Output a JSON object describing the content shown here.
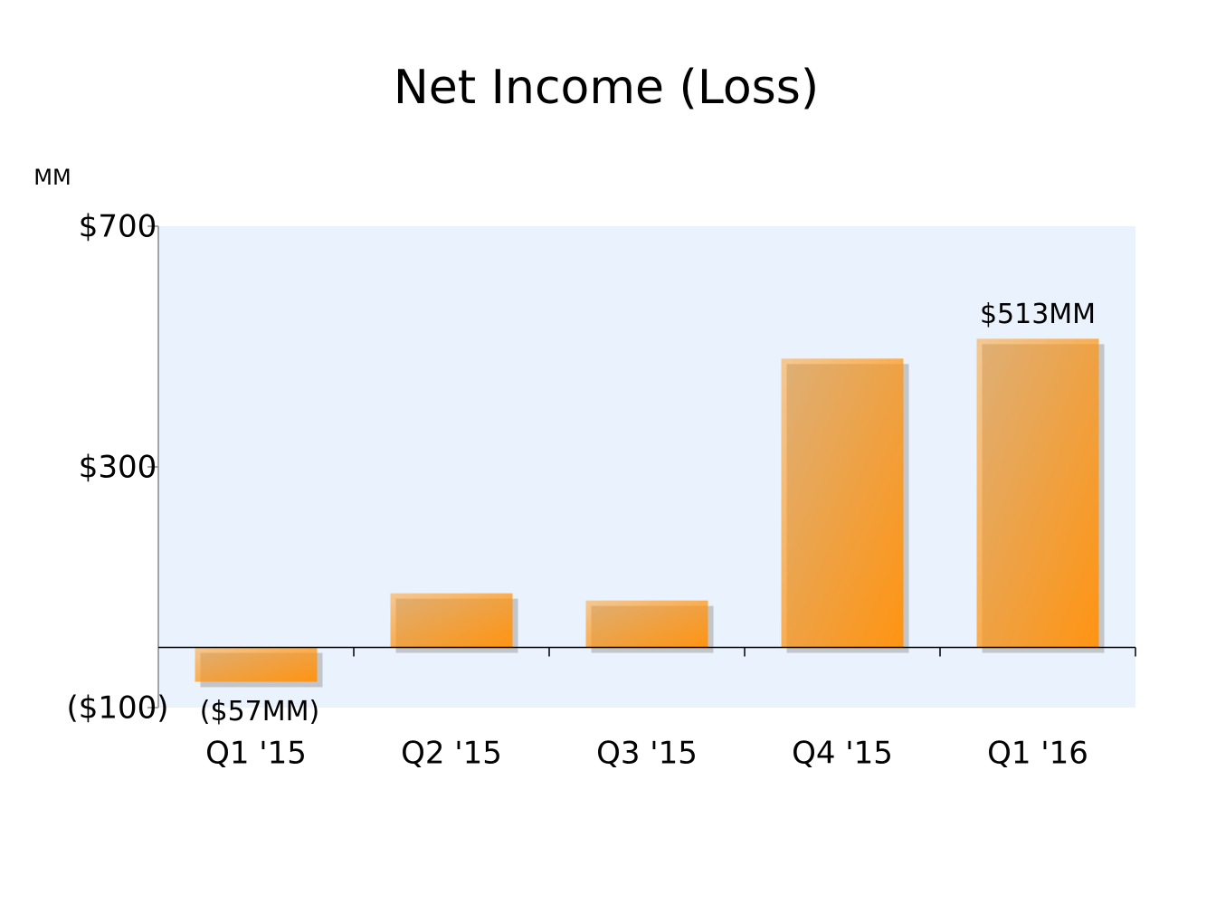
{
  "chart_data": {
    "type": "bar",
    "title": "Net Income (Loss)",
    "ylabel": "MM",
    "categories": [
      "Q1 '15",
      "Q2 '15",
      "Q3 '15",
      "Q4 '15",
      "Q1 '16"
    ],
    "values": [
      -57,
      90,
      78,
      480,
      513
    ],
    "value_labels": [
      "($57MM)",
      null,
      null,
      null,
      "$513MM"
    ],
    "color": "#ff9412",
    "ylim": [
      -100,
      700
    ],
    "yticks": [
      {
        "value": -100,
        "label": "($100)"
      },
      {
        "value": 300,
        "label": "$300"
      },
      {
        "value": 700,
        "label": "$700"
      }
    ]
  }
}
